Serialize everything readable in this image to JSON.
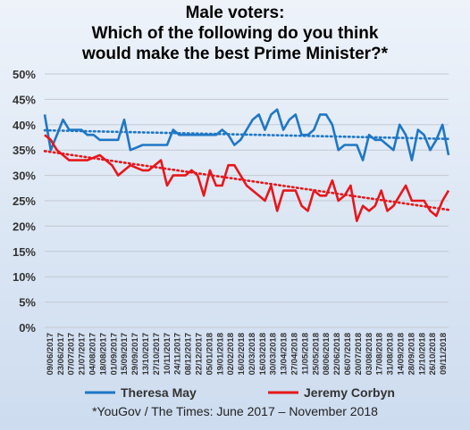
{
  "chart_data": {
    "type": "line",
    "title_lines": [
      "Male voters:",
      "Which of the following do you think",
      "would make the best Prime Minister?*"
    ],
    "ylim": [
      0,
      50
    ],
    "yticks": [
      "0%",
      "5%",
      "10%",
      "15%",
      "20%",
      "25%",
      "30%",
      "35%",
      "40%",
      "45%",
      "50%"
    ],
    "grid": true,
    "legend_position": "bottom",
    "x_tick_labels": [
      "09/06/2017",
      "23/06/2017",
      "07/07/2017",
      "21/07/2017",
      "04/08/2017",
      "18/08/2017",
      "01/09/2017",
      "15/09/2017",
      "29/09/2017",
      "13/10/2017",
      "27/10/2017",
      "10/11/2017",
      "24/11/2017",
      "08/12/2017",
      "22/12/2017",
      "05/01/2018",
      "19/01/2018",
      "02/02/2018",
      "16/02/2018",
      "02/03/2018",
      "16/03/2018",
      "30/03/2018",
      "13/04/2018",
      "27/04/2018",
      "11/05/2018",
      "25/05/2018",
      "08/06/2018",
      "22/06/2018",
      "06/07/2018",
      "20/07/2018",
      "03/08/2018",
      "17/08/2018",
      "31/08/2018",
      "14/09/2018",
      "28/09/2018",
      "12/10/2018",
      "26/10/2018",
      "09/11/2018"
    ],
    "series": [
      {
        "name": "Theresa May",
        "color": "#1f77c4",
        "values": [
          42,
          35,
          38,
          41,
          39,
          39,
          39,
          38,
          38,
          37,
          37,
          37,
          37,
          41,
          35,
          35.5,
          36,
          36,
          36,
          36,
          36,
          39,
          38,
          38,
          38,
          38,
          38,
          38,
          38,
          39,
          38,
          36,
          37,
          39,
          41,
          42,
          39,
          42,
          43,
          39,
          41,
          42,
          38,
          38,
          39,
          42,
          42,
          40,
          35,
          36,
          36,
          36,
          33,
          38,
          37,
          37,
          36,
          35,
          40,
          38,
          33,
          39,
          38,
          35,
          37,
          40,
          34
        ]
      },
      {
        "name": "Jeremy Corbyn",
        "color": "#e8161b",
        "values": [
          38,
          37,
          35,
          34,
          33,
          33,
          33,
          33,
          33.5,
          34,
          33,
          32,
          30,
          31,
          32,
          31.5,
          31,
          31,
          32,
          33,
          28,
          30,
          30,
          30,
          31,
          30,
          26,
          31,
          28,
          28,
          32,
          32,
          30,
          28,
          27,
          26,
          25,
          28,
          23,
          27,
          27,
          27,
          24,
          23,
          27,
          26,
          26,
          29,
          25,
          26,
          28,
          21,
          24,
          23,
          24,
          27,
          23,
          24,
          26,
          28,
          25,
          25,
          25,
          23,
          22,
          25,
          27
        ]
      }
    ],
    "trendlines": [
      {
        "series": "Theresa May",
        "start": 38.9,
        "end": 37.2
      },
      {
        "series": "Jeremy Corbyn",
        "start": 34.8,
        "end": 23.2
      }
    ],
    "source_note": "*YouGov / The Times: June 2017 – November 2018"
  }
}
